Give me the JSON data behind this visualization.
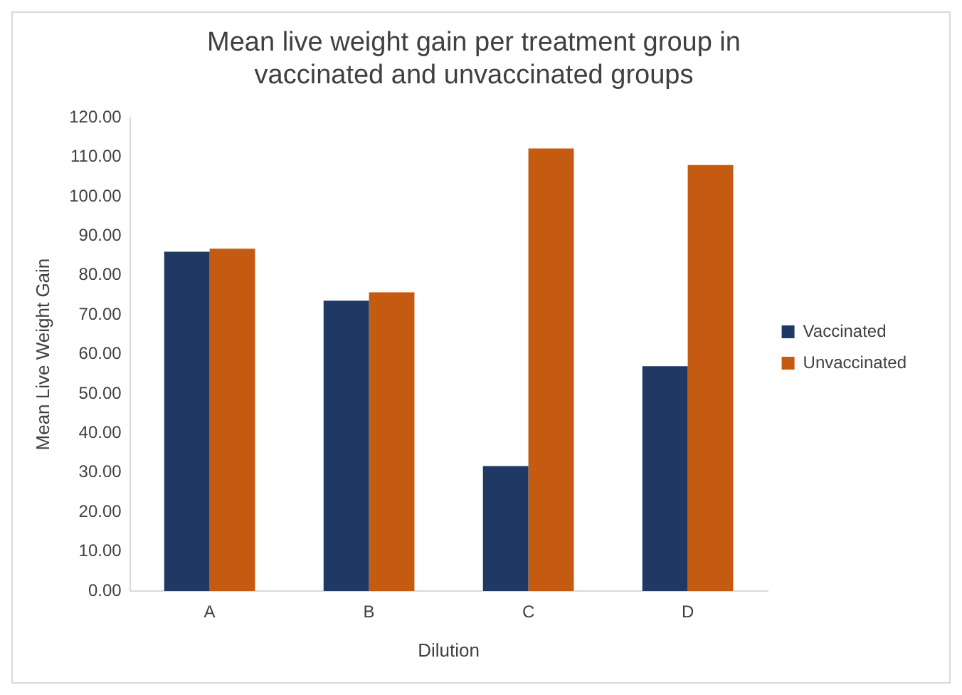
{
  "chart_data": {
    "type": "bar",
    "title": "Mean live weight gain per treatment group in vaccinated and unvaccinated groups",
    "xlabel": "Dilution",
    "ylabel": "Mean Live Weight Gain",
    "categories": [
      "A",
      "B",
      "C",
      "D"
    ],
    "series": [
      {
        "name": "Vaccinated",
        "color": "#1f3864",
        "values": [
          86,
          73.6,
          31.7,
          57
        ]
      },
      {
        "name": "Unvaccinated",
        "color": "#c55a11",
        "values": [
          86.8,
          75.7,
          112.2,
          108
        ]
      }
    ],
    "ylim": [
      0,
      120
    ],
    "yticks": [
      {
        "value": 0,
        "label": "0.00"
      },
      {
        "value": 10,
        "label": "10.00"
      },
      {
        "value": 20,
        "label": "20.00"
      },
      {
        "value": 30,
        "label": "30.00"
      },
      {
        "value": 40,
        "label": "40.00"
      },
      {
        "value": 50,
        "label": "50.00"
      },
      {
        "value": 60,
        "label": "60.00"
      },
      {
        "value": 70,
        "label": "70.00"
      },
      {
        "value": 80,
        "label": "80.00"
      },
      {
        "value": 90,
        "label": "90.00"
      },
      {
        "value": 100,
        "label": "100.00"
      },
      {
        "value": 110,
        "label": "110.00"
      },
      {
        "value": 120,
        "label": "120.00"
      }
    ],
    "grid": false,
    "legend": "right"
  }
}
